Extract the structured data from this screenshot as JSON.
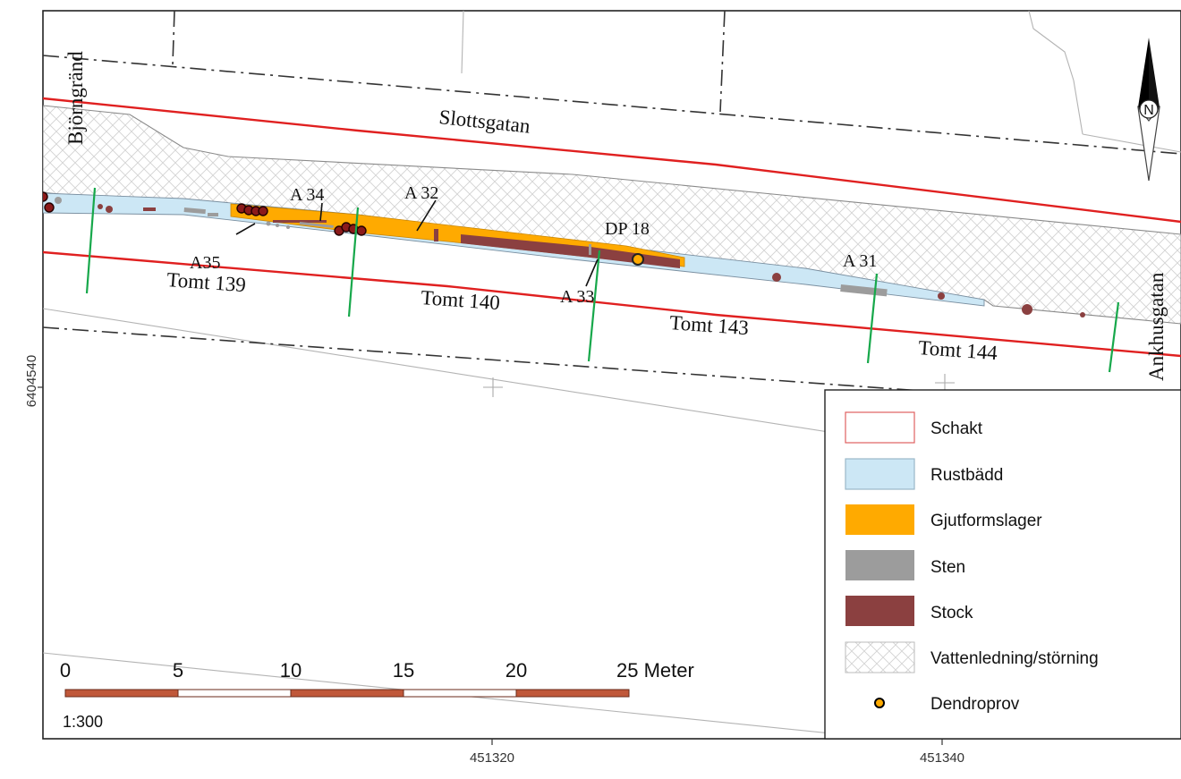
{
  "streets": {
    "top": "Slottsgatan",
    "left": "Björngränd",
    "right": "Ankhusgatan"
  },
  "lots": {
    "tomt_139": "Tomt 139",
    "tomt_140": "Tomt 140",
    "tomt_143": "Tomt 143",
    "tomt_144": "Tomt 144"
  },
  "annotations": {
    "a34": "A 34",
    "a32": "A 32",
    "a35": "A35",
    "a33": "A 33",
    "a31": "A 31",
    "dp18": "DP 18"
  },
  "coordinates": {
    "y_left": "6404540",
    "x_1": "451320",
    "x_2": "451340"
  },
  "north_arrow": {
    "letter": "N",
    "icon": "north-arrow-icon"
  },
  "scale_bar": {
    "ticks": [
      "0",
      "5",
      "10",
      "15",
      "20",
      "25 Meter"
    ],
    "ratio": "1:300",
    "colors": {
      "filled": "#c0583a",
      "empty": "#ffffff"
    }
  },
  "legend": {
    "items": [
      {
        "label": "Schakt",
        "color": "#ffffff",
        "border": "#e06060"
      },
      {
        "label": "Rustbädd",
        "color": "#cce7f5",
        "border": "#9ab8c8"
      },
      {
        "label": "Gjutformslager",
        "color": "#ffaa00",
        "border": "#ffaa00"
      },
      {
        "label": "Sten",
        "color": "#9c9c9c",
        "border": "#9c9c9c"
      },
      {
        "label": "Stock",
        "color": "#8b4040",
        "border": "#8b4040"
      },
      {
        "label": "Vattenledning/störning",
        "color": "hatch",
        "border": "#bbbbbb"
      },
      {
        "label": "Dendroprov",
        "color": "#ffaa00",
        "border": "#000000"
      }
    ]
  },
  "colors": {
    "schakt_line": "#e02020",
    "profile_line": "#17a84b",
    "rustbadd": "#cce7f5",
    "gjutform": "#ffaa00",
    "sten": "#9c9c9c",
    "stock": "#8b4040"
  }
}
